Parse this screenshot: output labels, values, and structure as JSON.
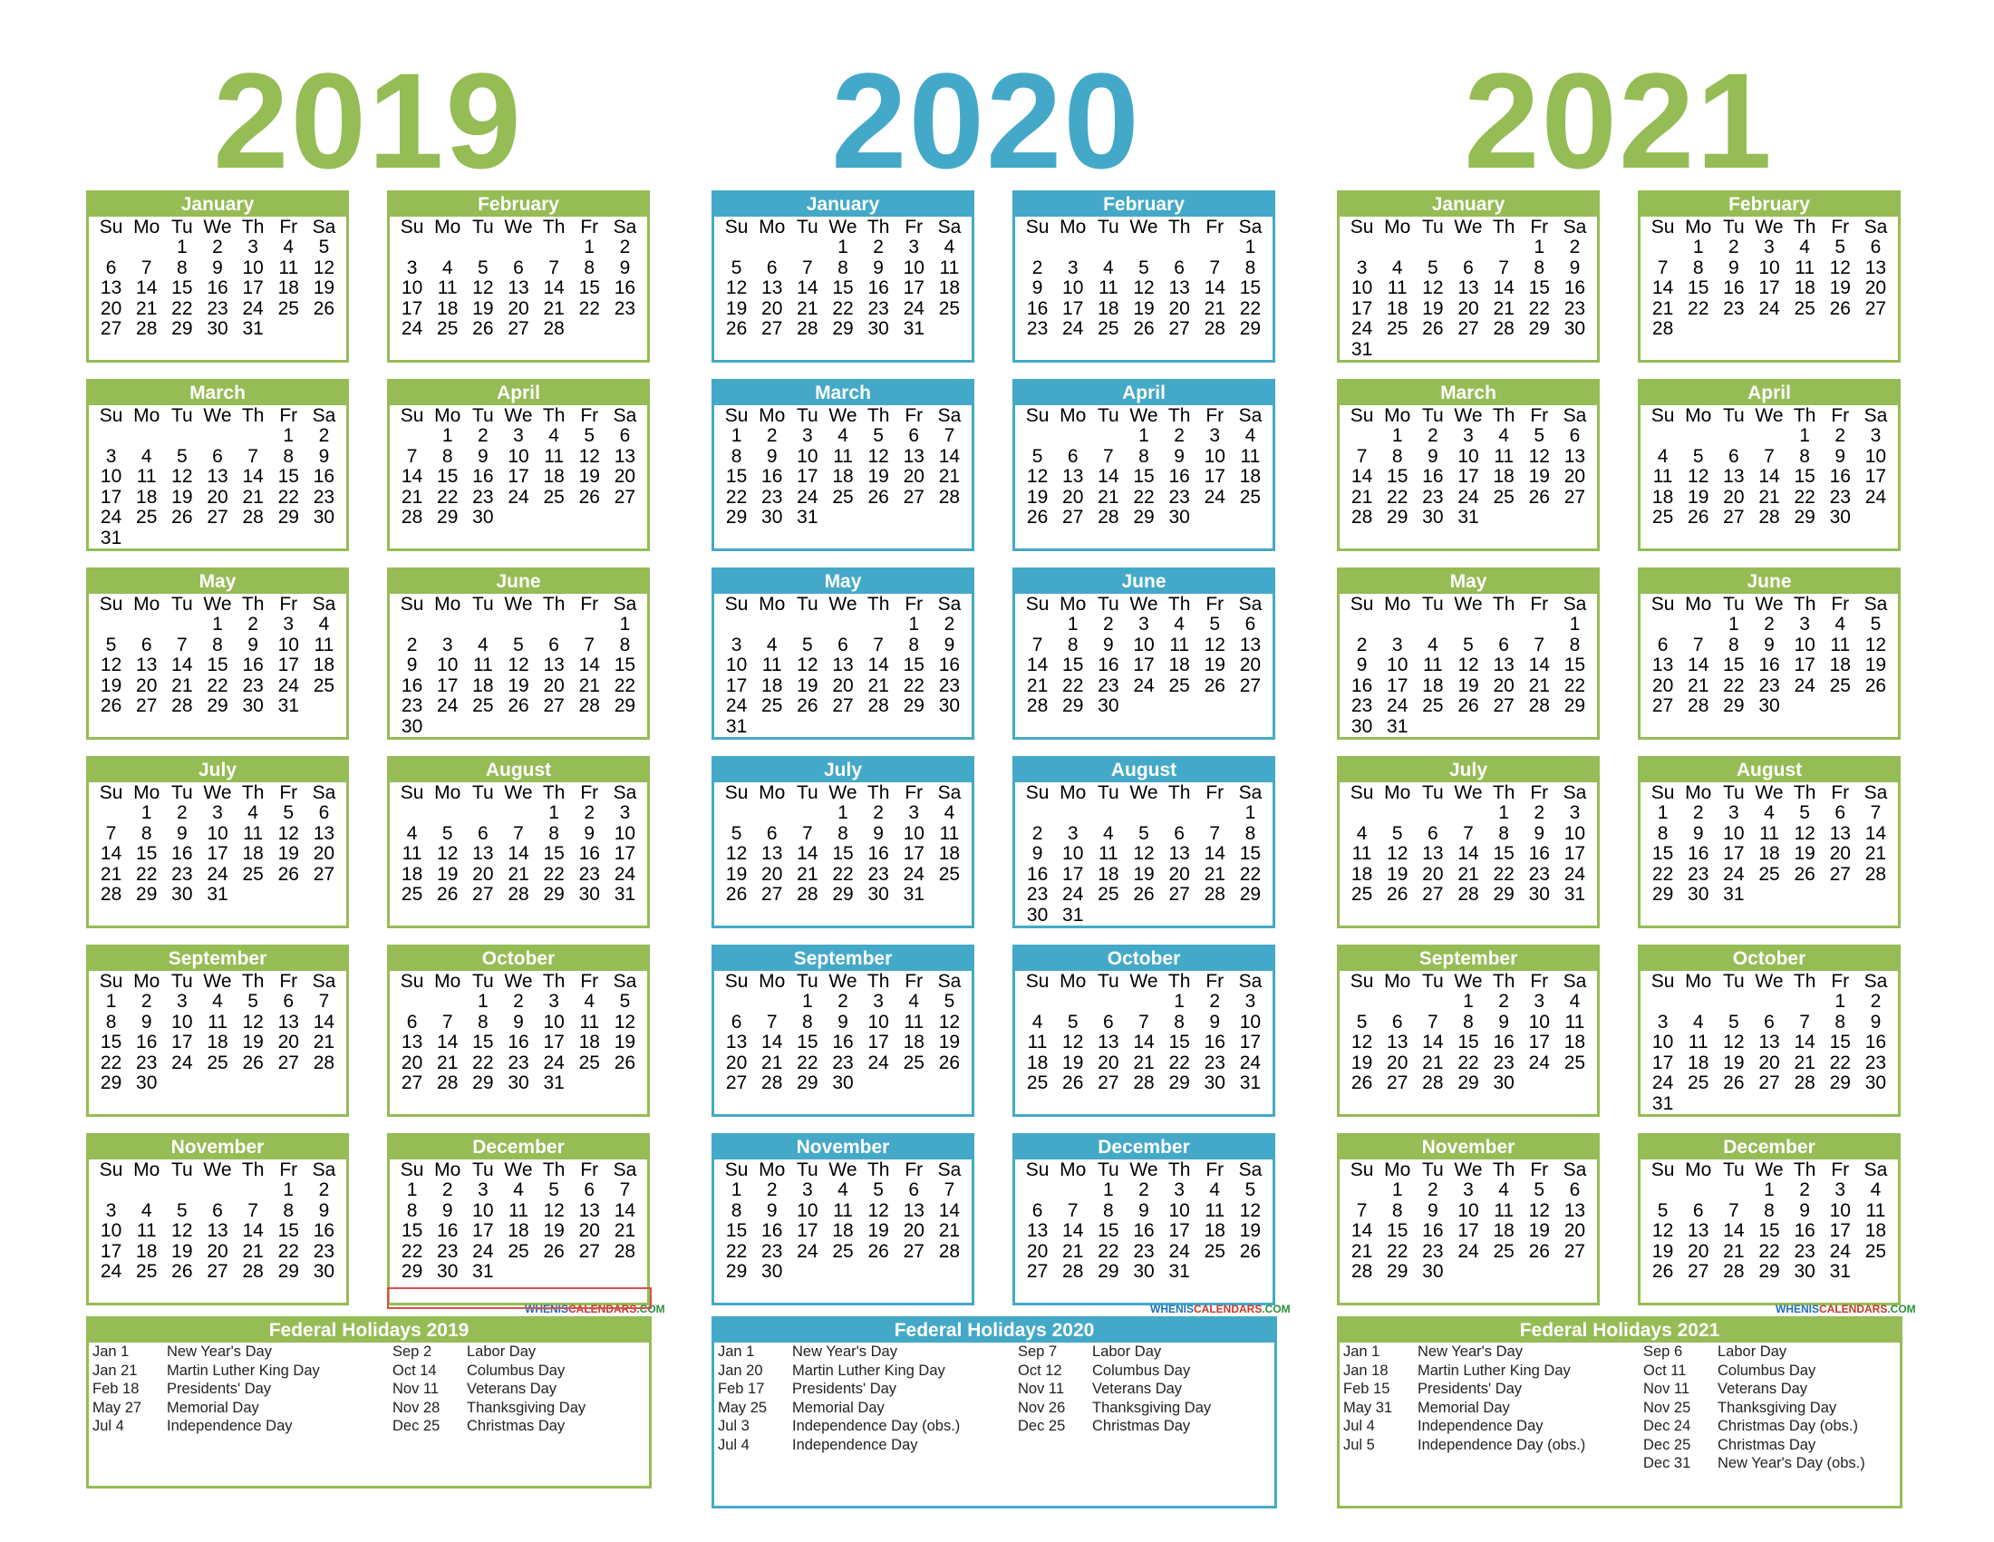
{
  "colors": {
    "green": "#96bc55",
    "blue": "#44a9c8",
    "marker": "#d64f4f"
  },
  "weekdays": [
    "Su",
    "Mo",
    "Tu",
    "We",
    "Th",
    "Fr",
    "Sa"
  ],
  "years": [
    {
      "label": "2019",
      "color": "#96bc55",
      "months": [
        {
          "name": "January",
          "start": 2,
          "days": 31
        },
        {
          "name": "February",
          "start": 5,
          "days": 28
        },
        {
          "name": "March",
          "start": 5,
          "days": 31
        },
        {
          "name": "April",
          "start": 1,
          "days": 30
        },
        {
          "name": "May",
          "start": 3,
          "days": 31
        },
        {
          "name": "June",
          "start": 6,
          "days": 30
        },
        {
          "name": "July",
          "start": 1,
          "days": 31
        },
        {
          "name": "August",
          "start": 4,
          "days": 31
        },
        {
          "name": "September",
          "start": 0,
          "days": 30
        },
        {
          "name": "October",
          "start": 2,
          "days": 31
        },
        {
          "name": "November",
          "start": 5,
          "days": 30
        },
        {
          "name": "December",
          "start": 0,
          "days": 31
        }
      ],
      "holidays": {
        "title": "Federal Holidays 2019",
        "left": [
          {
            "date": "Jan 1",
            "name": "New Year's Day"
          },
          {
            "date": "Jan 21",
            "name": "Martin Luther King Day"
          },
          {
            "date": "Feb 18",
            "name": "Presidents' Day"
          },
          {
            "date": "May 27",
            "name": "Memorial Day"
          },
          {
            "date": "Jul 4",
            "name": "Independence Day"
          }
        ],
        "right": [
          {
            "date": "Sep 2",
            "name": "Labor Day"
          },
          {
            "date": "Oct 14",
            "name": "Columbus Day"
          },
          {
            "date": "Nov 11",
            "name": "Veterans Day"
          },
          {
            "date": "Nov 28",
            "name": "Thanksgiving Day"
          },
          {
            "date": "Dec 25",
            "name": "Christmas Day"
          }
        ]
      }
    },
    {
      "label": "2020",
      "color": "#44a9c8",
      "months": [
        {
          "name": "January",
          "start": 3,
          "days": 31
        },
        {
          "name": "February",
          "start": 6,
          "days": 29
        },
        {
          "name": "March",
          "start": 0,
          "days": 31
        },
        {
          "name": "April",
          "start": 3,
          "days": 30
        },
        {
          "name": "May",
          "start": 5,
          "days": 31
        },
        {
          "name": "June",
          "start": 1,
          "days": 30
        },
        {
          "name": "July",
          "start": 3,
          "days": 31
        },
        {
          "name": "August",
          "start": 6,
          "days": 31
        },
        {
          "name": "September",
          "start": 2,
          "days": 30
        },
        {
          "name": "October",
          "start": 4,
          "days": 31
        },
        {
          "name": "November",
          "start": 0,
          "days": 30
        },
        {
          "name": "December",
          "start": 2,
          "days": 31
        }
      ],
      "holidays": {
        "title": "Federal Holidays 2020",
        "left": [
          {
            "date": "Jan 1",
            "name": "New Year's Day"
          },
          {
            "date": "Jan 20",
            "name": "Martin Luther King Day"
          },
          {
            "date": "Feb 17",
            "name": "Presidents' Day"
          },
          {
            "date": "May 25",
            "name": "Memorial Day"
          },
          {
            "date": "Jul 3",
            "name": "Independence Day (obs.)"
          },
          {
            "date": "Jul 4",
            "name": "Independence Day"
          }
        ],
        "right": [
          {
            "date": "Sep 7",
            "name": "Labor Day"
          },
          {
            "date": "Oct 12",
            "name": "Columbus Day"
          },
          {
            "date": "Nov 11",
            "name": "Veterans Day"
          },
          {
            "date": "Nov 26",
            "name": "Thanksgiving Day"
          },
          {
            "date": "Dec 25",
            "name": "Christmas Day"
          }
        ]
      }
    },
    {
      "label": "2021",
      "color": "#96bc55",
      "months": [
        {
          "name": "January",
          "start": 5,
          "days": 31
        },
        {
          "name": "February",
          "start": 1,
          "days": 28
        },
        {
          "name": "March",
          "start": 1,
          "days": 31
        },
        {
          "name": "April",
          "start": 4,
          "days": 30
        },
        {
          "name": "May",
          "start": 6,
          "days": 31
        },
        {
          "name": "June",
          "start": 2,
          "days": 30
        },
        {
          "name": "July",
          "start": 4,
          "days": 31
        },
        {
          "name": "August",
          "start": 0,
          "days": 31
        },
        {
          "name": "September",
          "start": 3,
          "days": 30
        },
        {
          "name": "October",
          "start": 5,
          "days": 31
        },
        {
          "name": "November",
          "start": 1,
          "days": 30
        },
        {
          "name": "December",
          "start": 3,
          "days": 31
        }
      ],
      "holidays": {
        "title": "Federal Holidays 2021",
        "left": [
          {
            "date": "Jan 1",
            "name": "New Year's Day"
          },
          {
            "date": "Jan 18",
            "name": "Martin Luther King Day"
          },
          {
            "date": "Feb 15",
            "name": "Presidents' Day"
          },
          {
            "date": "May 31",
            "name": "Memorial Day"
          },
          {
            "date": "Jul 4",
            "name": "Independence Day"
          },
          {
            "date": "Jul 5",
            "name": "Independence Day (obs.)"
          }
        ],
        "right": [
          {
            "date": "Sep 6",
            "name": "Labor Day"
          },
          {
            "date": "Oct 11",
            "name": "Columbus Day"
          },
          {
            "date": "Nov 11",
            "name": "Veterans Day"
          },
          {
            "date": "Nov 25",
            "name": "Thanksgiving Day"
          },
          {
            "date": "Dec 24",
            "name": "Christmas Day (obs.)"
          },
          {
            "date": "Dec 25",
            "name": "Christmas Day"
          },
          {
            "date": "Dec 31",
            "name": "New Year's Day (obs.)"
          }
        ]
      }
    }
  ],
  "brand": {
    "part1": "WHENIS",
    "part2": "CALENDARS",
    "part3": ".COM"
  }
}
